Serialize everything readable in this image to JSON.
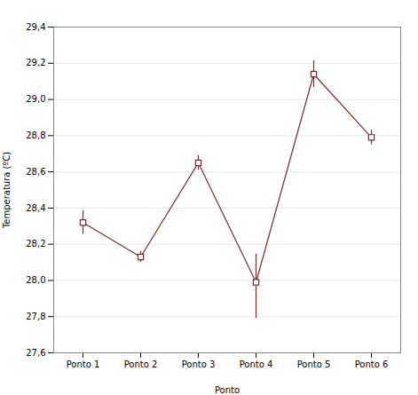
{
  "chart_data": {
    "type": "line",
    "categories": [
      "Ponto 1",
      "Ponto 2",
      "Ponto 3",
      "Ponto 4",
      "Ponto 5",
      "Ponto 6"
    ],
    "values": [
      28.32,
      28.13,
      28.65,
      27.99,
      29.14,
      28.79
    ],
    "yerr_upper": [
      0.065,
      0.03,
      0.04,
      0.155,
      0.075,
      0.04
    ],
    "yerr_lower": [
      0.065,
      0.03,
      0.04,
      0.2,
      0.075,
      0.04
    ],
    "color": "#7B2D2D",
    "marker": "square",
    "xlabel": "Ponto",
    "ylabel": "Temperatura (ºC)",
    "ylim": [
      27.6,
      29.4
    ],
    "yticks": [
      {
        "value": 27.6,
        "label": "27,6"
      },
      {
        "value": 27.8,
        "label": "27,8"
      },
      {
        "value": 28.0,
        "label": "28,0"
      },
      {
        "value": 28.2,
        "label": "28,2"
      },
      {
        "value": 28.4,
        "label": "28,4"
      },
      {
        "value": 28.6,
        "label": "28,6"
      },
      {
        "value": 28.8,
        "label": "28,8"
      },
      {
        "value": 29.0,
        "label": "29,0"
      },
      {
        "value": 29.2,
        "label": "29,2"
      },
      {
        "value": 29.4,
        "label": "29,4"
      }
    ],
    "grid": true
  }
}
